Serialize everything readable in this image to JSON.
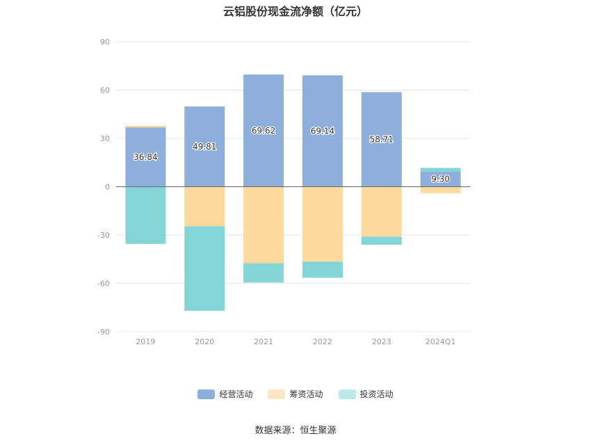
{
  "chart_data": {
    "type": "bar",
    "stacked": true,
    "title": "云铝股份现金流净额（亿元）",
    "categories": [
      "2019",
      "2020",
      "2021",
      "2022",
      "2023",
      "2024Q1"
    ],
    "series": [
      {
        "name": "经营活动",
        "color": "#8eaedb",
        "values": [
          36.84,
          49.81,
          69.62,
          69.14,
          58.71,
          9.3
        ]
      },
      {
        "name": "筹资活动",
        "color": "#fdd99e",
        "values": [
          1.0,
          -24.5,
          -47.5,
          -46.5,
          -31.0,
          -4.0
        ]
      },
      {
        "name": "投资活动",
        "color": "#85d5d6",
        "values": [
          -35.5,
          -52.5,
          -12.0,
          -10.0,
          -5.0,
          2.4
        ]
      }
    ],
    "data_labels": [
      "36.84",
      "49.81",
      "69.62",
      "69.14",
      "58.71",
      "9.30"
    ],
    "yticks": [
      90,
      60,
      30,
      0,
      -30,
      -60,
      -90
    ],
    "ylim": [
      -90,
      90
    ],
    "grid": true,
    "legend_position": "bottom"
  },
  "source": "数据来源：恒生聚源"
}
